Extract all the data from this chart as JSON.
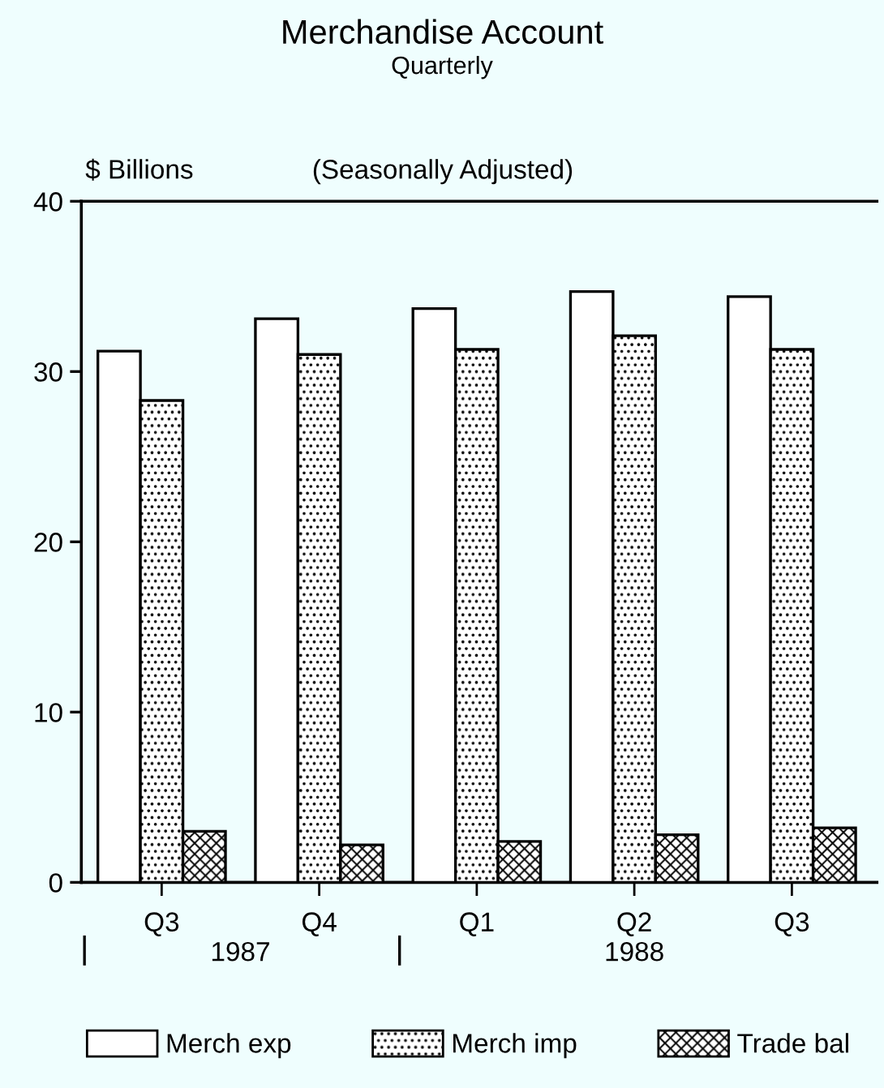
{
  "chart_data": {
    "type": "bar",
    "title": "Merchandise Account",
    "subtitle": "Quarterly",
    "ylabel": "$ Billions",
    "annotations": [
      "(Seasonally Adjusted)",
      "1987",
      "1988"
    ],
    "categories": [
      "Q3",
      "Q4",
      "Q1",
      "Q2",
      "Q3"
    ],
    "series": [
      {
        "name": "Merch exp",
        "color": "#ffffff",
        "values": [
          31.2,
          33.1,
          33.7,
          34.7,
          34.4
        ]
      },
      {
        "name": "Merch imp",
        "color": "#000000",
        "values": [
          28.3,
          31.0,
          31.3,
          32.1,
          31.3
        ]
      },
      {
        "name": "Trade bal",
        "color": "#000000",
        "values": [
          3.0,
          2.2,
          2.4,
          2.8,
          3.2
        ]
      }
    ],
    "ylim": [
      0,
      40
    ],
    "yticks": [
      0,
      10,
      20,
      30,
      40
    ],
    "legend": "bottom"
  }
}
